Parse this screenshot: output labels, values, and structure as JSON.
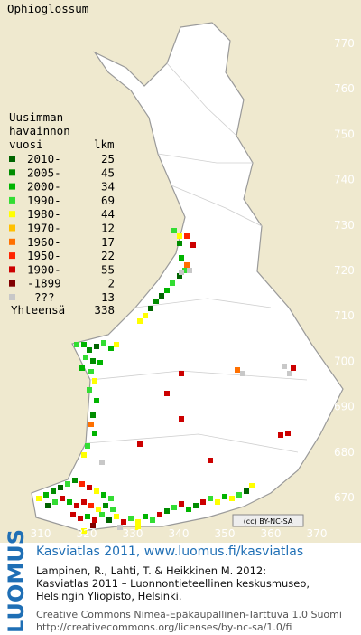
{
  "map": {
    "title": "Ophioglossum",
    "y_labels": [
      "770",
      "760",
      "750",
      "740",
      "730",
      "720",
      "710",
      "700",
      "690",
      "680",
      "670"
    ],
    "x_labels": [
      "310",
      "320",
      "330",
      "340",
      "350",
      "360",
      "370"
    ],
    "legend": {
      "heading": [
        "Uusimman",
        "havainnon",
        "vuosi"
      ],
      "count_heading": "lkm",
      "rows": [
        {
          "label": "2010-",
          "count": 25,
          "color": "#006400"
        },
        {
          "label": "2005-",
          "count": 45,
          "color": "#008c00"
        },
        {
          "label": "2000-",
          "count": 34,
          "color": "#00b400"
        },
        {
          "label": "1990-",
          "count": 69,
          "color": "#33dd33"
        },
        {
          "label": "1980-",
          "count": 44,
          "color": "#ffff00"
        },
        {
          "label": "1970-",
          "count": 12,
          "color": "#ffc000"
        },
        {
          "label": "1960-",
          "count": 17,
          "color": "#ff7000"
        },
        {
          "label": "1950-",
          "count": 22,
          "color": "#ff2400"
        },
        {
          "label": "1900-",
          "count": 55,
          "color": "#cc0000"
        },
        {
          "label": "-1899",
          "count": 2,
          "color": "#800000"
        },
        {
          "label": "???",
          "count": 13,
          "color": "#c8c8c8"
        }
      ],
      "total_label": "Yhteensä",
      "total": 338
    },
    "badge": "(cc) BY-NC-SA",
    "logo": "LUOMUS",
    "footer": {
      "link": "Kasviatlas 2011, www.luomus.fi/kasviatlas",
      "citation": [
        "Lampinen, R., Lahti, T. & Heikkinen M. 2012:",
        "Kasviatlas 2011 – Luonnontieteellinen keskusmuseo,",
        "Helsingin Yliopisto, Helsinki."
      ],
      "license": [
        "Creative Commons Nimeä-Epäkaupallinen-Tarttuva 1.0 Suomi",
        "http://creativecommons.org/licenses/by-nc-sa/1.0/fi"
      ]
    }
  }
}
